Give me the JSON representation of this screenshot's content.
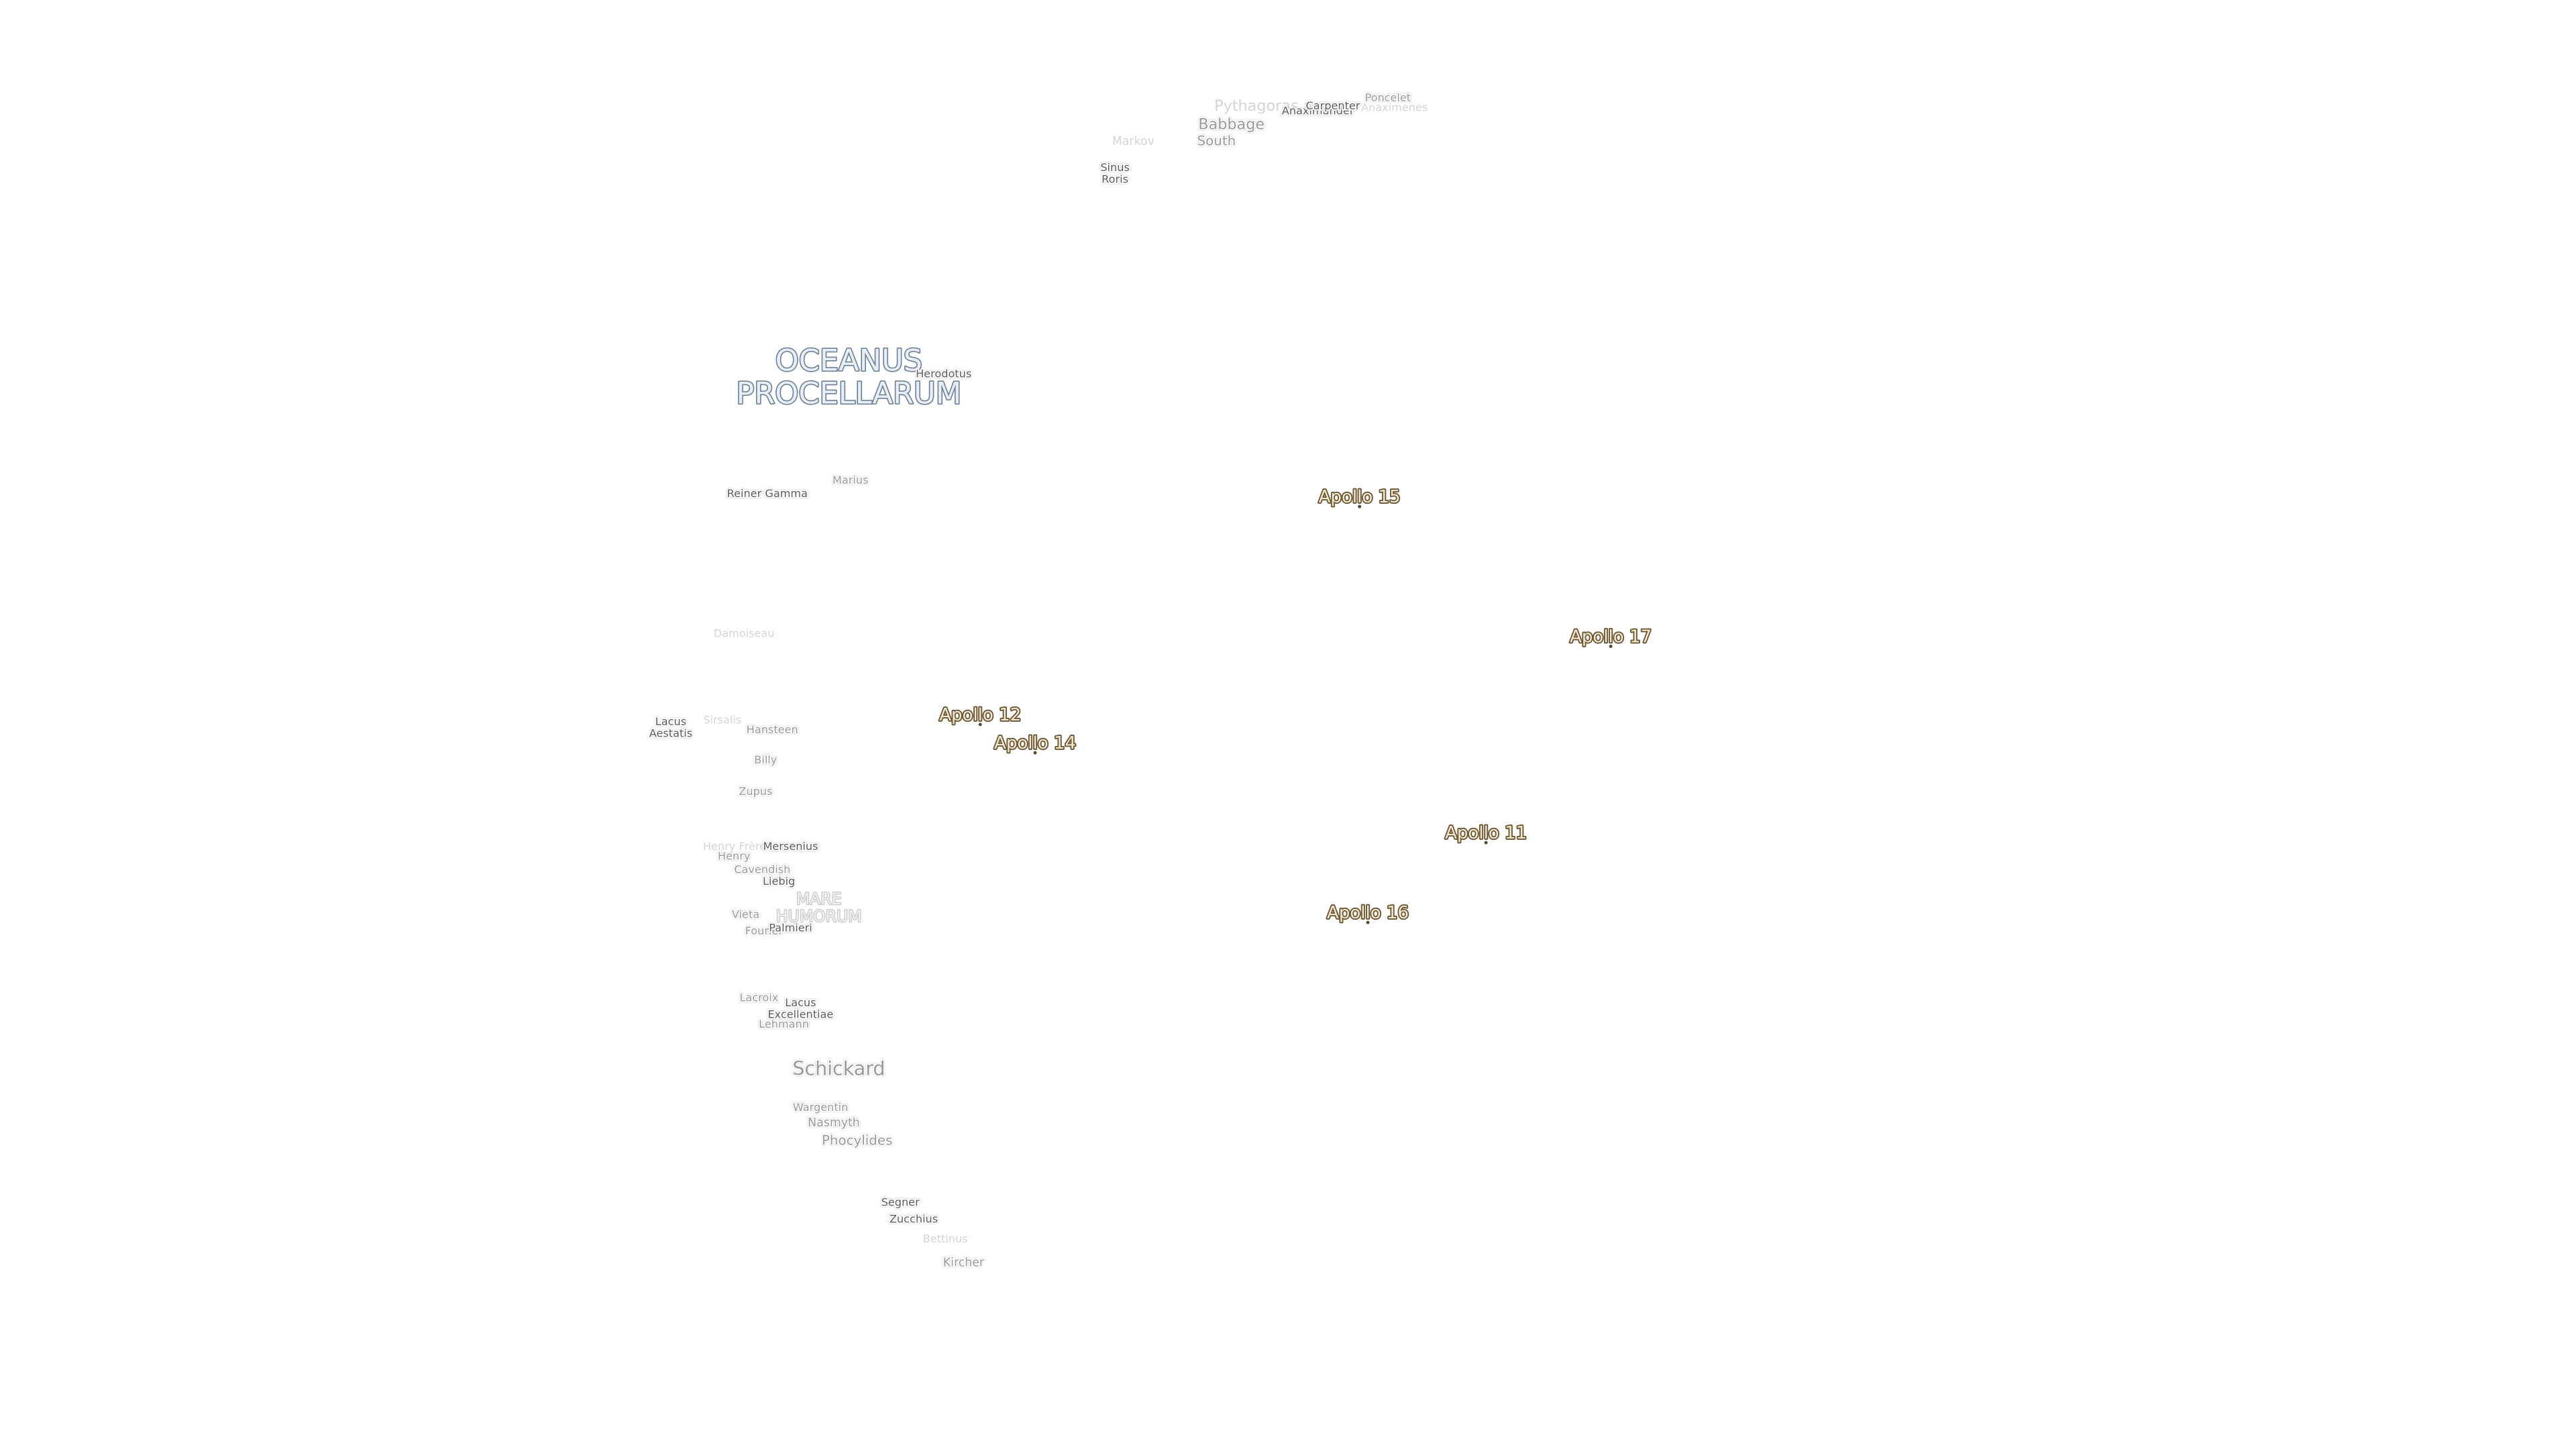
{
  "maria": [
    [
      "OCEANUS",
      "PROCELLARUM"
    ],
    [
      "MARE",
      "HUMORUM"
    ]
  ],
  "apollo_sites": [
    "Apollo 15",
    "Apollo 17",
    "Apollo 12",
    "Apollo 14",
    "Apollo 11",
    "Apollo 16"
  ],
  "features": [
    [
      "Pythagoras"
    ],
    [
      "Babbage"
    ],
    [
      "South"
    ],
    [
      "Markov"
    ],
    [
      "Anaximander"
    ],
    [
      "Carpenter"
    ],
    [
      "Poncelet"
    ],
    [
      "Anaximenes"
    ],
    [
      "Sinus",
      "Roris"
    ],
    [
      "Herodotus"
    ],
    [
      "Marius"
    ],
    [
      "Reiner Gamma"
    ],
    [
      "Damoiseau"
    ],
    [
      "Lacus",
      "Aestatis"
    ],
    [
      "Sirsalis"
    ],
    [
      "Hansteen"
    ],
    [
      "Billy"
    ],
    [
      "Zupus"
    ],
    [
      "Henry Frères"
    ],
    [
      "Henry"
    ],
    [
      "Mersenius"
    ],
    [
      "Cavendish"
    ],
    [
      "Liebig"
    ],
    [
      "Vieta"
    ],
    [
      "Fourier"
    ],
    [
      "Palmieri"
    ],
    [
      "Lacroix"
    ],
    [
      "Lacus",
      "Excellentiae"
    ],
    [
      "Lehmann"
    ],
    [
      "Schickard"
    ],
    [
      "Wargentin"
    ],
    [
      "Nasmyth"
    ],
    [
      "Phocylides"
    ],
    [
      "Segner"
    ],
    [
      "Zucchius"
    ],
    [
      "Bettinus"
    ],
    [
      "Kircher"
    ]
  ]
}
